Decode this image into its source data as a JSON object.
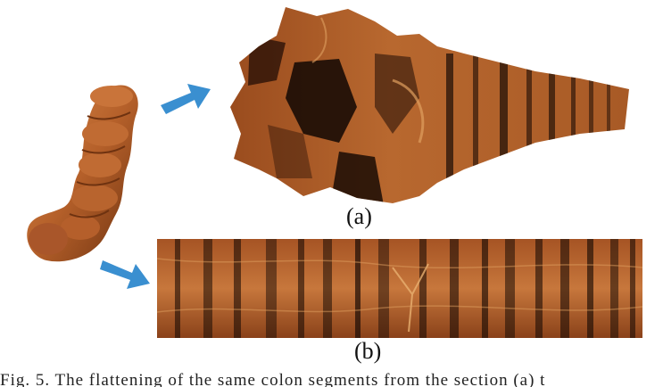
{
  "figure": {
    "panels": [
      {
        "label": "(a)"
      },
      {
        "label": "(b)"
      }
    ],
    "caption": "Fig. 5. The flattening of the same colon segments from the section (a) t",
    "colors": {
      "colon": "#b5602a",
      "colon_dark": "#1a0c05",
      "arrow": "#3a8fd0"
    }
  }
}
